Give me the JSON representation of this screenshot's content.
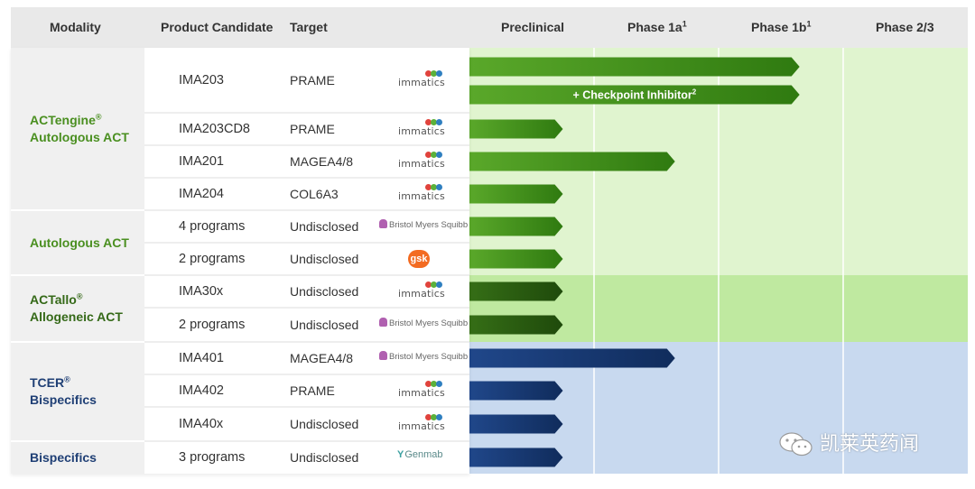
{
  "header": {
    "modality": "Modality",
    "product_candidate": "Product Candidate",
    "target": "Target",
    "phases": [
      {
        "label": "Preclinical",
        "sup": ""
      },
      {
        "label": "Phase 1a",
        "sup": "1"
      },
      {
        "label": "Phase 1b",
        "sup": "1"
      },
      {
        "label": "Phase 2/3",
        "sup": ""
      }
    ]
  },
  "modalities": [
    {
      "line1": "ACTengine",
      "sup1": "®",
      "line2": "Autologous ACT",
      "color": "#4a8f20",
      "bg": "#e0f4cf"
    },
    {
      "line1": "Autologous ACT",
      "sup1": "",
      "line2": "",
      "color": "#4a8f20",
      "bg": "#e0f4cf"
    },
    {
      "line1": "ACTallo",
      "sup1": "®",
      "line2": "Allogeneic ACT",
      "color": "#356918",
      "bg": "#bfe9a0"
    },
    {
      "line1": "TCER",
      "sup1": "®",
      "line2": "Bispecifics",
      "color": "#1f3f75",
      "bg": "#c8d9ef"
    },
    {
      "line1": "Bispecifics",
      "sup1": "",
      "line2": "",
      "color": "#1f3f75",
      "bg": "#c8d9ef"
    }
  ],
  "rows": [
    {
      "product": "IMA203",
      "target": "PRAME",
      "partner": "immatics-logo",
      "group": 0
    },
    {
      "product": "IMA203CD8",
      "target": "PRAME",
      "partner": "immatics-logo",
      "group": 0
    },
    {
      "product": "IMA201",
      "target": "MAGEA4/8",
      "partner": "immatics-logo",
      "group": 0
    },
    {
      "product": "IMA204",
      "target": "COL6A3",
      "partner": "immatics-logo",
      "group": 0
    },
    {
      "product": "4 programs",
      "target": "Undisclosed",
      "partner": "bms-logo",
      "group": 1
    },
    {
      "product": "2 programs",
      "target": "Undisclosed",
      "partner": "gsk-logo",
      "group": 1
    },
    {
      "product": "IMA30x",
      "target": "Undisclosed",
      "partner": "immatics-logo",
      "group": 2
    },
    {
      "product": "2 programs",
      "target": "Undisclosed",
      "partner": "bms-logo",
      "group": 2
    },
    {
      "product": "IMA401",
      "target": "MAGEA4/8",
      "partner": "bms-logo",
      "group": 3
    },
    {
      "product": "IMA402",
      "target": "PRAME",
      "partner": "immatics-logo",
      "group": 3
    },
    {
      "product": "IMA40x",
      "target": "Undisclosed",
      "partner": "immatics-logo",
      "group": 3
    },
    {
      "product": "3 programs",
      "target": "Undisclosed",
      "partner": "genmab-logo",
      "group": 4
    }
  ],
  "logos": {
    "immatics": "immatics",
    "bms": "Bristol Myers Squibb",
    "gsk": "gsk",
    "genmab": "Genmab"
  },
  "watermark": "凯莱英药闻",
  "chart_data": {
    "type": "bar",
    "orientation": "horizontal",
    "title": "",
    "xlabel": "",
    "ylabel": "",
    "x_categories": [
      "Preclinical",
      "Phase 1a",
      "Phase 1b",
      "Phase 2/3"
    ],
    "xlim": [
      0,
      4
    ],
    "grid": true,
    "bars": [
      {
        "product": "IMA203",
        "stage_reached": 2.65,
        "label": ""
      },
      {
        "product": "IMA203",
        "stage_reached": 2.65,
        "label": "+ Checkpoint Inhibitor",
        "label_sup": "2"
      },
      {
        "product": "IMA203CD8",
        "stage_reached": 0.75,
        "label": ""
      },
      {
        "product": "IMA201",
        "stage_reached": 1.65,
        "label": ""
      },
      {
        "product": "IMA204",
        "stage_reached": 0.75,
        "label": ""
      },
      {
        "product": "4 programs",
        "stage_reached": 0.75,
        "label": ""
      },
      {
        "product": "2 programs",
        "stage_reached": 0.75,
        "label": ""
      },
      {
        "product": "IMA30x",
        "stage_reached": 0.75,
        "label": ""
      },
      {
        "product": "2 programs",
        "stage_reached": 0.75,
        "label": ""
      },
      {
        "product": "IMA401",
        "stage_reached": 1.65,
        "label": ""
      },
      {
        "product": "IMA402",
        "stage_reached": 0.75,
        "label": ""
      },
      {
        "product": "IMA40x",
        "stage_reached": 0.75,
        "label": ""
      },
      {
        "product": "3 programs",
        "stage_reached": 0.75,
        "label": ""
      }
    ],
    "colors": {
      "green": "#3f8a16",
      "dark_green": "#2c5f12",
      "blue": "#1a3d75"
    }
  }
}
